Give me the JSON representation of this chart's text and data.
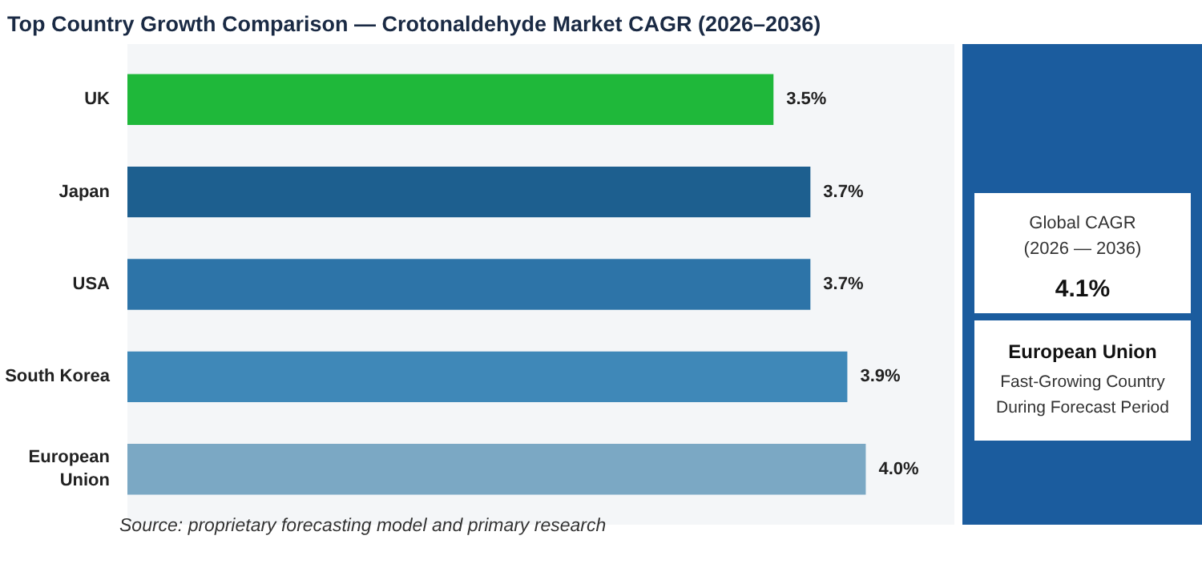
{
  "chart_data": {
    "type": "bar",
    "orientation": "horizontal",
    "title": "Top Country Growth Comparison — Crotonaldehyde Market CAGR (2026–2036)",
    "categories": [
      "UK",
      "Japan",
      "USA",
      "South Korea",
      "European Union"
    ],
    "values": [
      3.5,
      3.7,
      3.7,
      3.9,
      4.0
    ],
    "colors": [
      "#1fb83a",
      "#1d5f8f",
      "#2d74a8",
      "#3f88b8",
      "#7ba8c4"
    ],
    "value_labels": [
      "3.5%",
      "3.7%",
      "3.7%",
      "3.9%",
      "4.0%"
    ],
    "tick_labels": "y",
    "annotations": [
      "Global CAGR\n(2026 — 2036)",
      "4.1%",
      "European Union",
      "Fast-Growing Country\nDuring Forecast Period",
      "Source: proprietary forecasting model and primary research"
    ]
  }
}
